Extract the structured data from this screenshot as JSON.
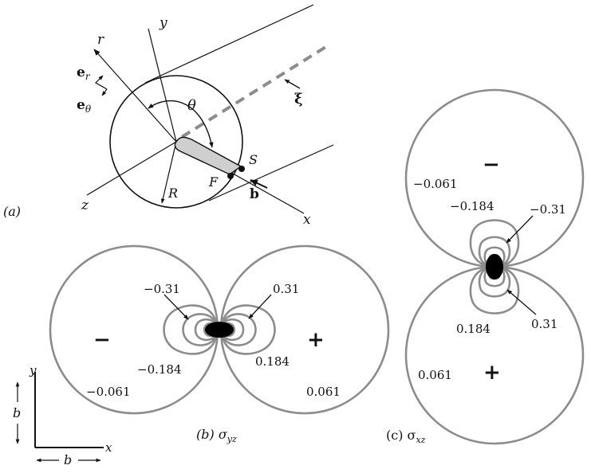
{
  "panel_a": {
    "panel_label": "(a)",
    "axis_x": "x",
    "axis_y": "y",
    "axis_z": "z",
    "axis_r": "r",
    "unit_er": "e",
    "unit_er_sub": "r",
    "unit_etheta": "e",
    "unit_etheta_sub": "θ",
    "angle": "θ",
    "radius": "R",
    "point_s": "S",
    "point_f": "F",
    "burgers": "b",
    "line_dir": "ξ"
  },
  "panel_b": {
    "caption_prefix": "(b) σ",
    "caption_sub": "yz",
    "sign_left": "−",
    "sign_right": "+",
    "labels": {
      "m031": "−0.31",
      "p031": "0.31",
      "m0184": "−0.184",
      "p0184": "0.184",
      "m0061": "−0.061",
      "p0061": "0.061"
    }
  },
  "panel_c": {
    "caption_prefix": "(c) σ",
    "caption_sub": "xz",
    "sign_top": "−",
    "sign_bottom": "+",
    "labels": {
      "m0061": "−0.061",
      "m0184": "−0.184",
      "m031": "−0.31",
      "p031": "0.31",
      "p0184": "0.184",
      "p0061": "0.061"
    }
  },
  "scale": {
    "axis_x": "x",
    "axis_y": "y",
    "b_vertical": "b",
    "b_horizontal": "b"
  }
}
